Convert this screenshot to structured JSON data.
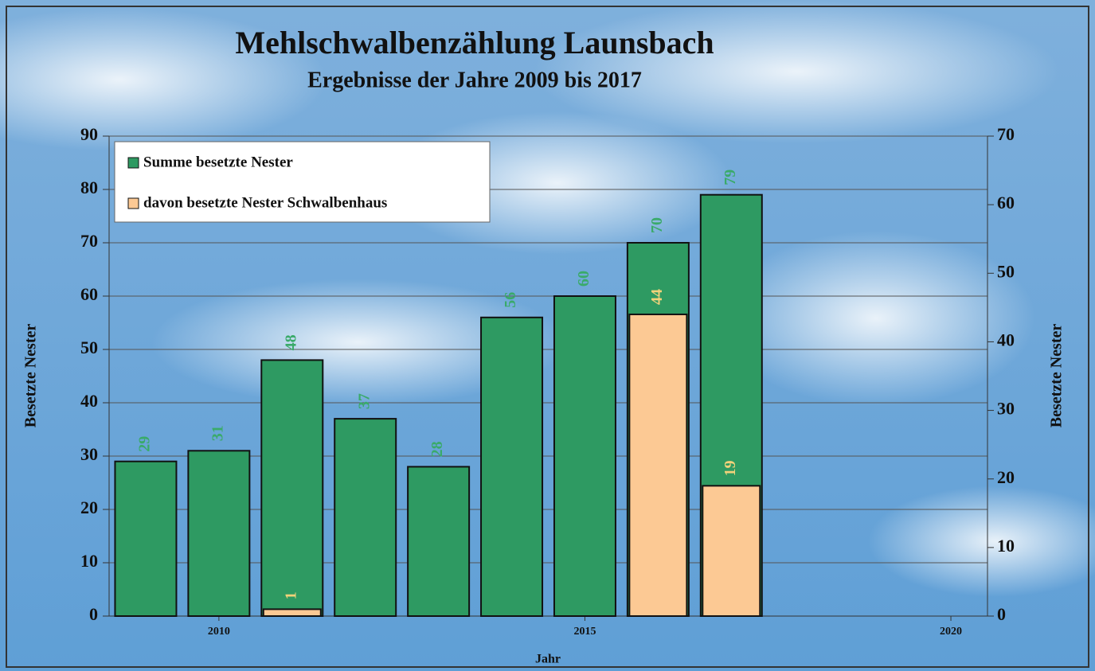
{
  "chart_data": {
    "type": "bar",
    "title": "Mehlschwalbenzählung Launsbach",
    "subtitle": "Ergebnisse der Jahre 2009 bis 2017",
    "x_label": "Jahr",
    "y_label": "Besetzte Nester",
    "y2_label": "Besetzte Nester",
    "x": [
      2009,
      2010,
      2011,
      2012,
      2013,
      2014,
      2015,
      2016,
      2017
    ],
    "series": [
      {
        "name": "Summe besetzte Nester",
        "color": "#2e9a62",
        "values": [
          29,
          31,
          48,
          37,
          28,
          56,
          60,
          70,
          79
        ]
      },
      {
        "name": "davon besetzte Nester Schwalbenhaus",
        "color": "#fcc994",
        "axis": "y2",
        "values": [
          null,
          null,
          1,
          null,
          null,
          null,
          null,
          44,
          19
        ]
      }
    ],
    "xlim": [
      2008.5,
      2020.5
    ],
    "xticks": [
      2010,
      2015,
      2020
    ],
    "ylim": [
      0,
      90
    ],
    "yticks": [
      0,
      10,
      20,
      30,
      40,
      50,
      60,
      70,
      80,
      90
    ],
    "y2lim": [
      0,
      70
    ],
    "y2ticks": [
      0,
      10,
      20,
      30,
      40,
      50,
      60,
      70
    ],
    "grid": true,
    "legend": "top-left"
  }
}
